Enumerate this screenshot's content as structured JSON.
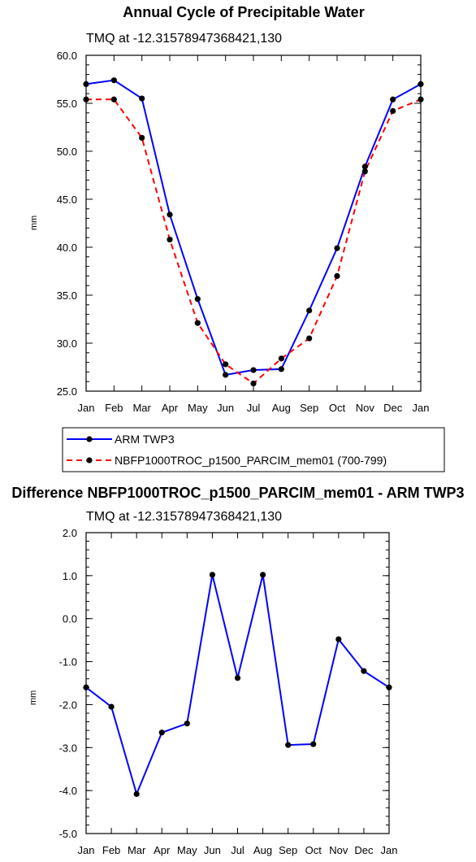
{
  "chart_data": [
    {
      "type": "line",
      "title": "Annual Cycle of Precipitable Water",
      "subtitle": "TMQ at -12.31578947368421,130",
      "ylabel": "mm",
      "ylim": [
        25.0,
        60.0
      ],
      "yticks": [
        "25.0",
        "30.0",
        "35.0",
        "40.0",
        "45.0",
        "50.0",
        "55.0",
        "60.0"
      ],
      "categories": [
        "Jan",
        "Feb",
        "Mar",
        "Apr",
        "May",
        "Jun",
        "Jul",
        "Aug",
        "Sep",
        "Oct",
        "Nov",
        "Dec",
        "Jan"
      ],
      "series": [
        {
          "name": "ARM TWP3",
          "color": "#0000ff",
          "dash": "solid",
          "values": [
            57.0,
            57.4,
            55.5,
            43.4,
            34.6,
            26.7,
            27.2,
            27.3,
            33.4,
            39.9,
            48.4,
            55.4,
            57.0
          ]
        },
        {
          "name": "NBFP1000TROC_p1500_PARCIM_mem01 (700-799)",
          "color": "#ff0000",
          "dash": "dashed",
          "values": [
            55.4,
            55.4,
            51.4,
            40.8,
            32.1,
            27.8,
            25.8,
            28.4,
            30.5,
            37.0,
            47.9,
            54.2,
            55.4
          ]
        }
      ],
      "legend": "below"
    },
    {
      "type": "line",
      "title": "Difference NBFP1000TROC_p1500_PARCIM_mem01 - ARM TWP3",
      "subtitle": "TMQ at -12.31578947368421,130",
      "ylabel": "mm",
      "ylim": [
        -5.0,
        2.0
      ],
      "yticks": [
        "-5.0",
        "-4.0",
        "-3.0",
        "-2.0",
        "-1.0",
        "0.0",
        "1.0",
        "2.0"
      ],
      "categories": [
        "Jan",
        "Feb",
        "Mar",
        "Apr",
        "May",
        "Jun",
        "Jul",
        "Aug",
        "Sep",
        "Oct",
        "Nov",
        "Dec",
        "Jan"
      ],
      "series": [
        {
          "color": "#0000ff",
          "dash": "solid",
          "values": [
            -1.6,
            -2.05,
            -4.08,
            -2.65,
            -2.44,
            1.02,
            -1.38,
            1.02,
            -2.94,
            -2.92,
            -0.48,
            -1.22,
            -1.6
          ]
        }
      ]
    }
  ]
}
